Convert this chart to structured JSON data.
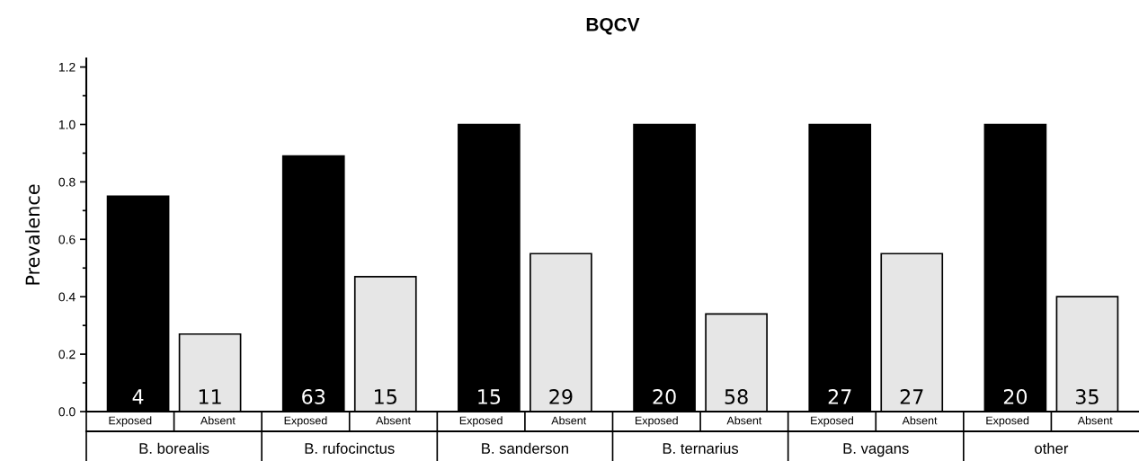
{
  "chart_data": {
    "type": "bar",
    "title": "BQCV",
    "ylabel": "Prevalence",
    "categories": [
      "B. borealis",
      "B. rufocinctus",
      "B. sanderson",
      "B. ternarius",
      "B. vagans",
      "other"
    ],
    "series": [
      {
        "name": "Exposed",
        "color": "#000000",
        "values": [
          0.75,
          0.89,
          1.0,
          1.0,
          1.0,
          1.0
        ]
      },
      {
        "name": "Absent",
        "color": "#e6e6e6",
        "values": [
          0.27,
          0.47,
          0.55,
          0.34,
          0.55,
          0.4
        ]
      }
    ],
    "annotations": [
      "4",
      "11",
      "63",
      "15",
      "15",
      "29",
      "20",
      "58",
      "27",
      "27",
      "20",
      "35"
    ],
    "ylim": [
      0,
      1.23
    ],
    "yticks": [
      {
        "value": 0,
        "label": "0.0"
      },
      {
        "value": 0.2,
        "label": "0.2"
      },
      {
        "value": 0.4,
        "label": "0.4"
      },
      {
        "value": 0.6,
        "label": "0.6"
      },
      {
        "value": 0.8,
        "label": "0.8"
      },
      {
        "value": 1.0,
        "label": "1.0"
      },
      {
        "value": 1.2,
        "label": "1.2"
      }
    ],
    "grid": false,
    "legend": "bottom"
  }
}
